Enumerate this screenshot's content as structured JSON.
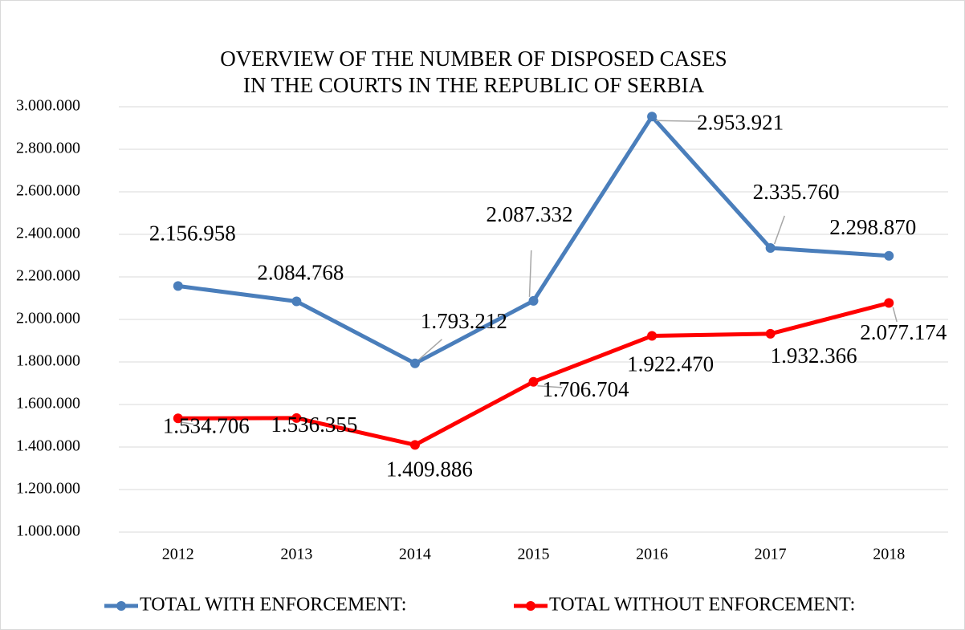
{
  "chart_data": {
    "type": "line",
    "title": [
      "OVERVIEW OF THE NUMBER OF DISPOSED CASES",
      "IN THE COURTS IN THE REPUBLIC OF SERBIA"
    ],
    "categories": [
      "2012",
      "2013",
      "2014",
      "2015",
      "2016",
      "2017",
      "2018"
    ],
    "series": [
      {
        "name": "TOTAL WITH ENFORCEMENT:",
        "color": "#4a7ebb",
        "values": [
          2156958,
          2084768,
          1793212,
          2087332,
          2953921,
          2335760,
          2298870
        ],
        "value_labels": [
          "2.156.958",
          "2.084.768",
          "1.793.212",
          "2.087.332",
          "2.953.921",
          "2.335.760",
          "2.298.870"
        ]
      },
      {
        "name": "TOTAL WITHOUT ENFORCEMENT:",
        "color": "#ff0000",
        "values": [
          1534706,
          1536355,
          1409886,
          1706704,
          1922470,
          1932366,
          2077174
        ],
        "value_labels": [
          "1.534.706",
          "1.536.355",
          "1.409.886",
          "1.706.704",
          "1.922.470",
          "1.932.366",
          "2.077.174"
        ]
      }
    ],
    "ylim": [
      1000000,
      3000000
    ],
    "yticks": [
      {
        "value": 1000000,
        "label": "1.000.000"
      },
      {
        "value": 1200000,
        "label": "1.200.000"
      },
      {
        "value": 1400000,
        "label": "1.400.000"
      },
      {
        "value": 1600000,
        "label": "1.600.000"
      },
      {
        "value": 1800000,
        "label": "1.800.000"
      },
      {
        "value": 2000000,
        "label": "2.000.000"
      },
      {
        "value": 2200000,
        "label": "2.200.000"
      },
      {
        "value": 2400000,
        "label": "2.400.000"
      },
      {
        "value": 2600000,
        "label": "2.600.000"
      },
      {
        "value": 2800000,
        "label": "2.800.000"
      },
      {
        "value": 3000000,
        "label": "3.000.000"
      }
    ],
    "grid": true,
    "legend": "bottom"
  }
}
